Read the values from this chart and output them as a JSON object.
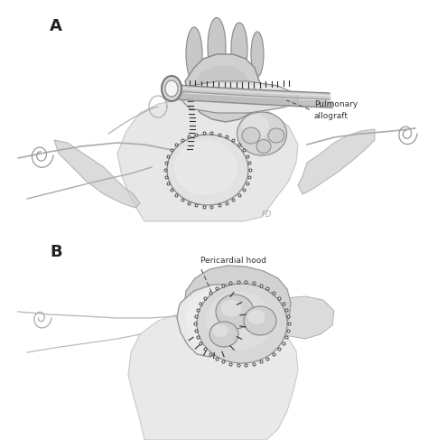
{
  "bg_color": "#ffffff",
  "fig_width": 4.74,
  "fig_height": 4.87,
  "dpi": 100,
  "label_A": "A",
  "label_B": "B",
  "annotation_A_text": "Pulmonary\nallograft",
  "annotation_B_text": "Pericardial hood",
  "sketch_gray": "#b0b0b0",
  "sketch_med": "#909090",
  "sketch_dark": "#606060",
  "sketch_vdark": "#404040",
  "suture_color": "#303030",
  "white": "#f5f5f5",
  "near_white": "#e8e8e8"
}
